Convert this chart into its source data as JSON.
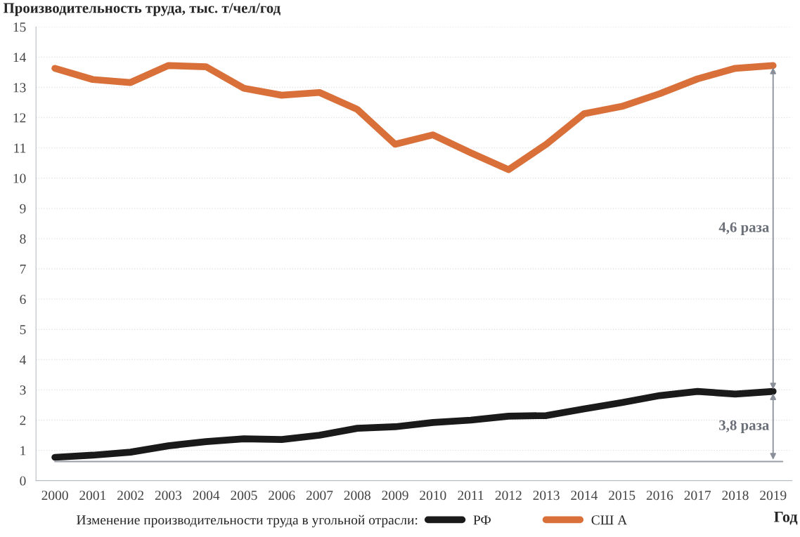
{
  "chart_data": {
    "type": "line",
    "ylabel": "Производительность труда, тыс. т/чел/год",
    "xlabel": "Год",
    "legend_title": "Изменение производительности труда в угольной отрасли:",
    "categories": [
      "2000",
      "2001",
      "2002",
      "2003",
      "2004",
      "2005",
      "2006",
      "2007",
      "2008",
      "2009",
      "2010",
      "2011",
      "2012",
      "2013",
      "2014",
      "2015",
      "2016",
      "2017",
      "2018",
      "2019"
    ],
    "series": [
      {
        "name": "РФ",
        "color": "#1a1a1a",
        "values": [
          0.77,
          0.84,
          0.94,
          1.15,
          1.29,
          1.38,
          1.36,
          1.5,
          1.73,
          1.78,
          1.92,
          2.0,
          2.13,
          2.15,
          2.37,
          2.58,
          2.81,
          2.95,
          2.86,
          2.95
        ]
      },
      {
        "name": "СШ А",
        "color": "#d9703a",
        "values": [
          13.63,
          13.26,
          13.16,
          13.72,
          13.68,
          12.97,
          12.74,
          12.83,
          12.27,
          11.12,
          11.43,
          10.84,
          10.28,
          11.12,
          12.13,
          12.37,
          12.79,
          13.28,
          13.63,
          13.72
        ]
      }
    ],
    "ylim": [
      0,
      15
    ],
    "yticks": [
      0,
      1,
      2,
      3,
      4,
      5,
      6,
      7,
      8,
      9,
      10,
      11,
      12,
      13,
      14,
      15
    ],
    "grid": "y",
    "legend": "bottom",
    "marker": "none",
    "line_style": "solid",
    "ref_lines": [
      {
        "axis": "y",
        "value": 0.63,
        "color": "#9a9ea6"
      }
    ],
    "annotations": [
      "4,6 раза",
      "3,8 раза"
    ]
  }
}
